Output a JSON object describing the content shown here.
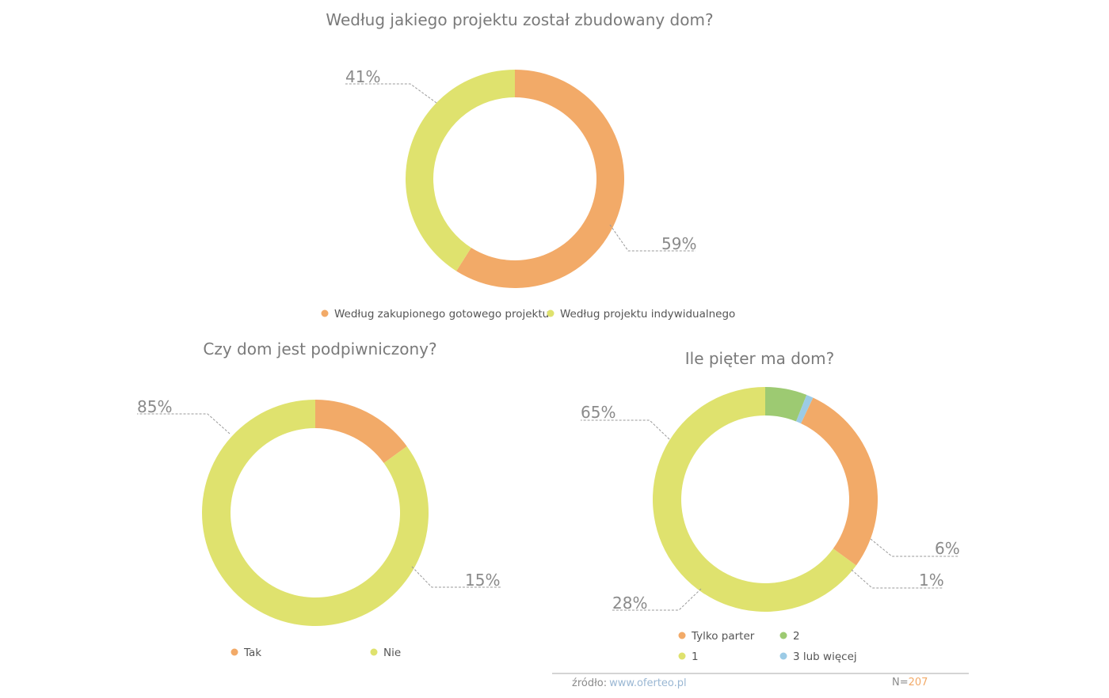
{
  "colors": {
    "orange": "#f2aa68",
    "yellow": "#dfe26e",
    "green": "#9dca72",
    "blue": "#9ccbe6",
    "link": "#9ab7d3",
    "accent": "#f2aa68"
  },
  "chart_data": [
    {
      "type": "pie",
      "donut": true,
      "title": "Według jakiego projektu został zbudowany dom?",
      "slices": [
        {
          "name": "Według zakupionego gotowego projektu",
          "value": 59,
          "label": "59%",
          "color": "#f2aa68"
        },
        {
          "name": "Według projektu indywidualnego",
          "value": 41,
          "label": "41%",
          "color": "#dfe26e"
        }
      ],
      "legend_placement": "bottom"
    },
    {
      "type": "pie",
      "donut": true,
      "title": "Czy dom jest podpiwniczony?",
      "slices": [
        {
          "name": "Tak",
          "value": 15,
          "label": "15%",
          "color": "#f2aa68"
        },
        {
          "name": "Nie",
          "value": 85,
          "label": "85%",
          "color": "#dfe26e"
        }
      ],
      "legend_placement": "bottom"
    },
    {
      "type": "pie",
      "donut": true,
      "title": "Ile pięter ma dom?",
      "slices": [
        {
          "name": "2",
          "value": 6,
          "label": "6%",
          "color": "#9dca72"
        },
        {
          "name": "3 lub więcej",
          "value": 1,
          "label": "1%",
          "color": "#9ccbe6"
        },
        {
          "name": "Tylko parter",
          "value": 28,
          "label": "28%",
          "color": "#f2aa68"
        },
        {
          "name": "1",
          "value": 65,
          "label": "65%",
          "color": "#dfe26e"
        }
      ],
      "legend_order": [
        "Tylko parter",
        "2",
        "1",
        "3 lub więcej"
      ],
      "legend_placement": "bottom"
    }
  ],
  "footer": {
    "source_label": "źródło:",
    "source_link": "www.oferteo.pl",
    "n_label": "N=",
    "n_value": "207"
  }
}
